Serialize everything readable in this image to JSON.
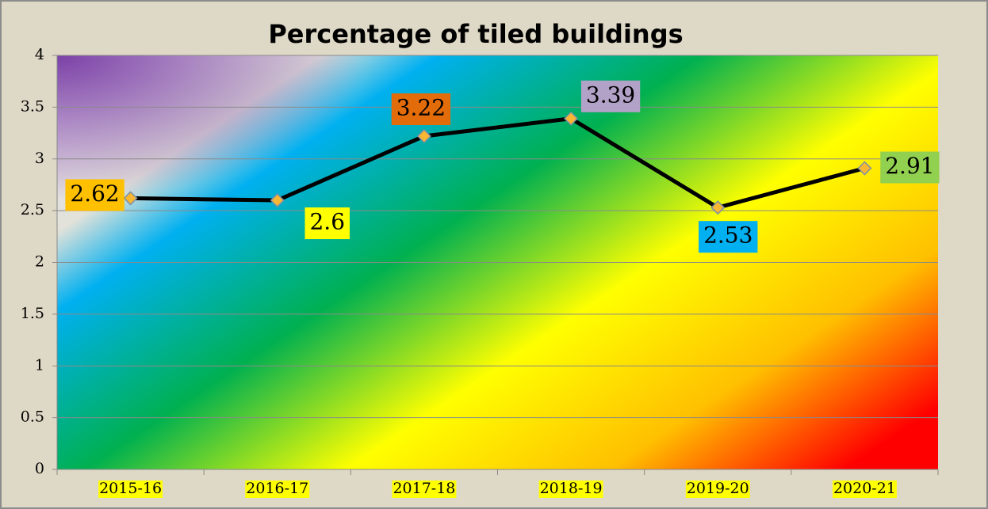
{
  "chart_data": {
    "type": "line",
    "title": "Percentage of tiled buildings",
    "categories": [
      "2015-16",
      "2016-17",
      "2017-18",
      "2018-19",
      "2019-20",
      "2020-21"
    ],
    "values": [
      2.62,
      2.6,
      3.22,
      3.39,
      2.53,
      2.91
    ],
    "color": "#000000",
    "marker_color": "#f7b733",
    "label_colors": [
      "#ffc000",
      "#ffff00",
      "#e36c0a",
      "#b3a2c7",
      "#00b0f0",
      "#92d050"
    ],
    "category_label_color": "#ffff00",
    "ylim": [
      0,
      4
    ],
    "yticks": [
      0,
      0.5,
      1,
      1.5,
      2,
      2.5,
      3,
      3.5,
      4
    ],
    "grid": true
  }
}
